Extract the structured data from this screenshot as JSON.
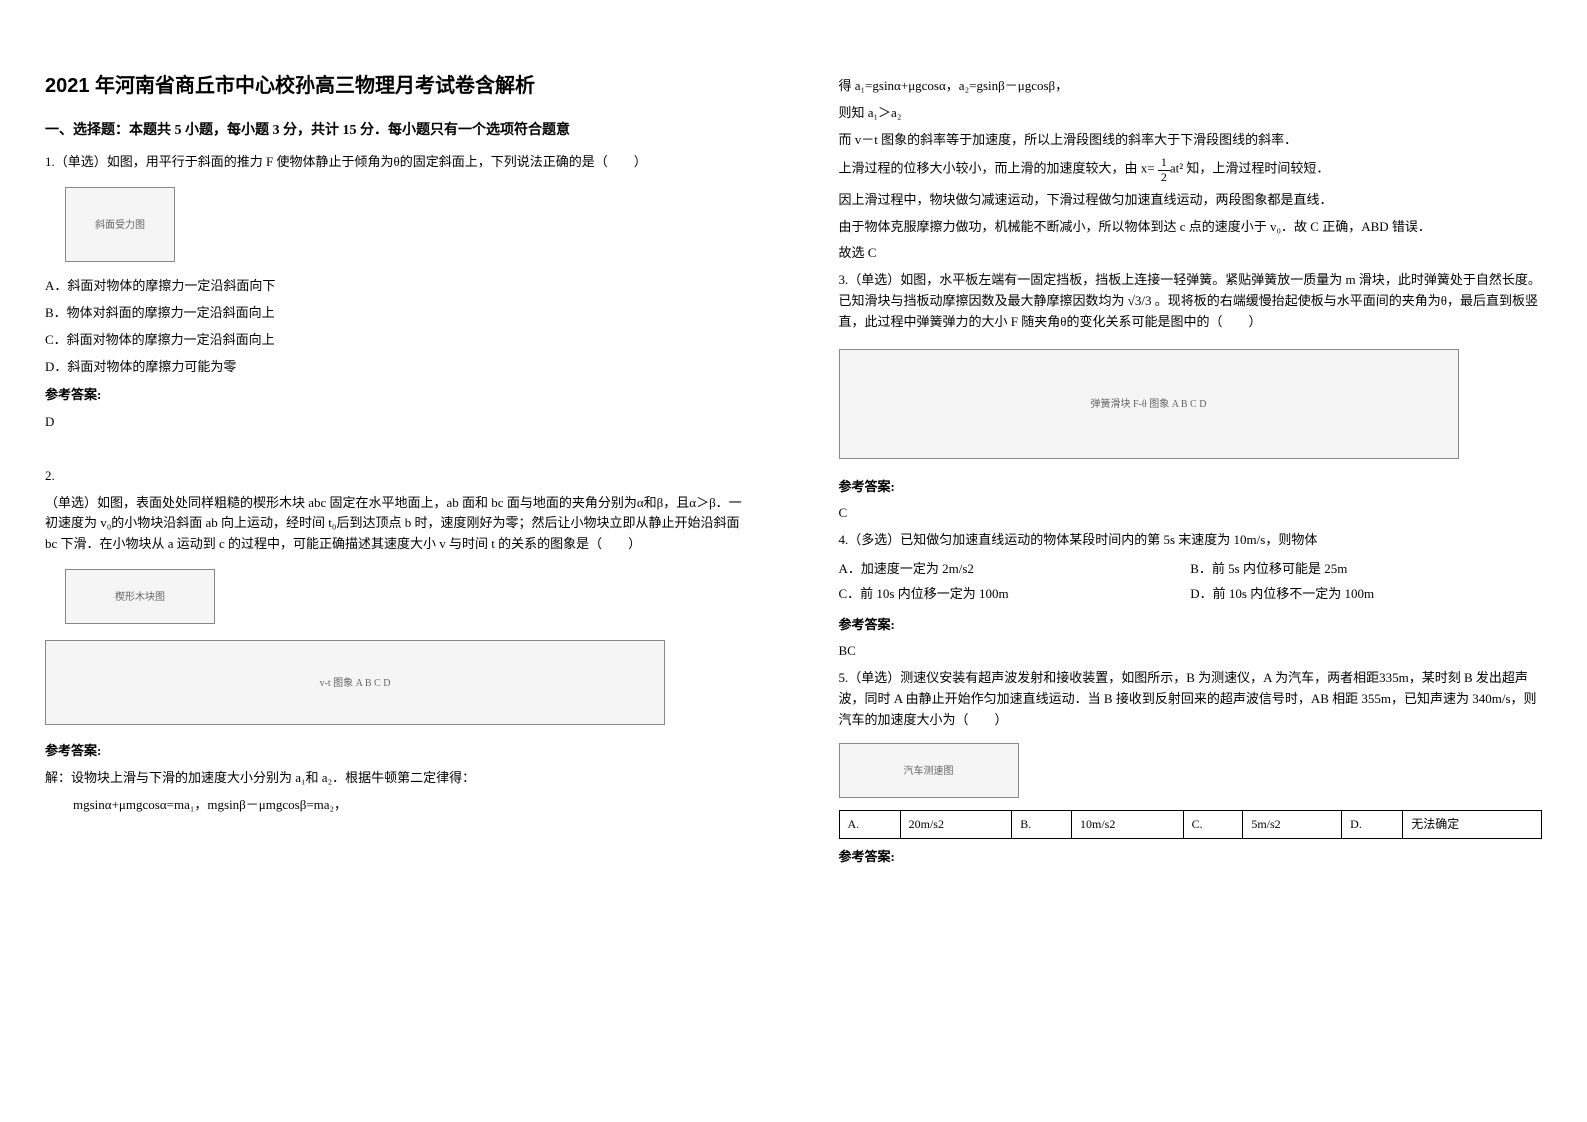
{
  "title": "2021 年河南省商丘市中心校孙高三物理月考试卷含解析",
  "section1": "一、选择题：本题共 5 小题，每小题 3 分，共计 15 分．每小题只有一个选项符合题意",
  "q1": {
    "stem": "1.（单选）如图，用平行于斜面的推力 F 使物体静止于倾角为θ的固定斜面上，下列说法正确的是（　　）",
    "figLabel": "斜面受力图",
    "optA": "A．斜面对物体的摩擦力一定沿斜面向下",
    "optB": "B．物体对斜面的摩擦力一定沿斜面向上",
    "optC": "C．斜面对物体的摩擦力一定沿斜面向上",
    "optD": "D．斜面对物体的摩擦力可能为零",
    "ansLabel": "参考答案",
    "ans": "D"
  },
  "q2": {
    "num": "2.",
    "stem": "（单选）如图，表面处处同样粗糙的楔形木块 abc 固定在水平地面上，ab 面和 bc 面与地面的夹角分别为α和β，且α＞β．一初速度为 v₀的小物块沿斜面 ab 向上运动，经时间 t₀后到达顶点 b 时，速度刚好为零；然后让小物块立即从静止开始沿斜面 bc 下滑．在小物块从 a 运动到 c 的过程中，可能正确描述其速度大小 v 与时间 t 的关系的图象是（　　）",
    "figLabel1": "楔形木块图",
    "figLabel2": "v-t 图象 A B C D",
    "ansLabel": "参考答案",
    "expl1": "解：设物块上滑与下滑的加速度大小分别为 a₁和 a₂．根据牛顿第二定律得：",
    "expl2": "mgsinα+μmgcosα=ma₁，mgsinβ－μmgcosβ=ma₂，",
    "expl3": "得 a₁=gsinα+μgcosα，a₂=gsinβ－μgcosβ，",
    "expl4": "则知 a₁＞a₂",
    "expl5": "而 v－t 图象的斜率等于加速度，所以上滑段图线的斜率大于下滑段图线的斜率．",
    "expl6a": "上滑过程的位移大小较小，而上滑的加速度较大，由 x=",
    "expl6b": "知，上滑过程时间较短．",
    "expl7": "因上滑过程中，物块做匀减速运动，下滑过程做匀加速直线运动，两段图象都是直线．",
    "expl8": "由于物体克服摩擦力做功，机械能不断减小，所以物体到达 c 点的速度小于 v₀．故 C 正确，ABD 错误．",
    "expl9": "故选 C"
  },
  "q3": {
    "stem1": "3.（单选）如图，水平板左端有一固定挡板，挡板上连接一轻弹簧。紧贴弹簧放一质量为 m 滑块，此时弹簧处于自然长度。已知滑块与挡板动摩擦因数及最大静摩擦因数均为",
    "stem2": "。现将板的右端缓慢抬起使板与水平面间的夹角为θ，最后直到板竖直，此过程中弹簧弹力的大小 F 随夹角θ的变化关系可能是图中的（　　）",
    "sqrt": "√3/3",
    "figLabel": "弹簧滑块 F-θ 图象 A B C D",
    "ansLabel": "参考答案",
    "ans": "C"
  },
  "q4": {
    "stem": "4.（多选）已知做匀加速直线运动的物体某段时间内的第 5s 末速度为 10m/s，则物体",
    "optA": "A．加速度一定为 2m/s2",
    "optB": "B．前 5s 内位移可能是 25m",
    "optC": "C．前 10s 内位移一定为 100m",
    "optD": "D．前 10s 内位移不一定为 100m",
    "ansLabel": "参考答案",
    "ans": "BC"
  },
  "q5": {
    "stem": "5.（单选）测速仪安装有超声波发射和接收装置，如图所示，B 为测速仪，A 为汽车，两者相距335m，某时刻 B 发出超声波，同时 A 由静止开始作匀加速直线运动．当 B 接收到反射回来的超声波信号时，AB 相距 355m，已知声速为 340m/s，则汽车的加速度大小为（　　）",
    "figLabel": "汽车测速图",
    "optA_l": "A.",
    "optA_v": "20m/s2",
    "optB_l": "B.",
    "optB_v": "10m/s2",
    "optC_l": "C.",
    "optC_v": "5m/s2",
    "optD_l": "D.",
    "optD_v": "无法确定",
    "ansLabel": "参考答案"
  },
  "fracNum": "1",
  "fracDen": "2",
  "fracTail": "at²"
}
